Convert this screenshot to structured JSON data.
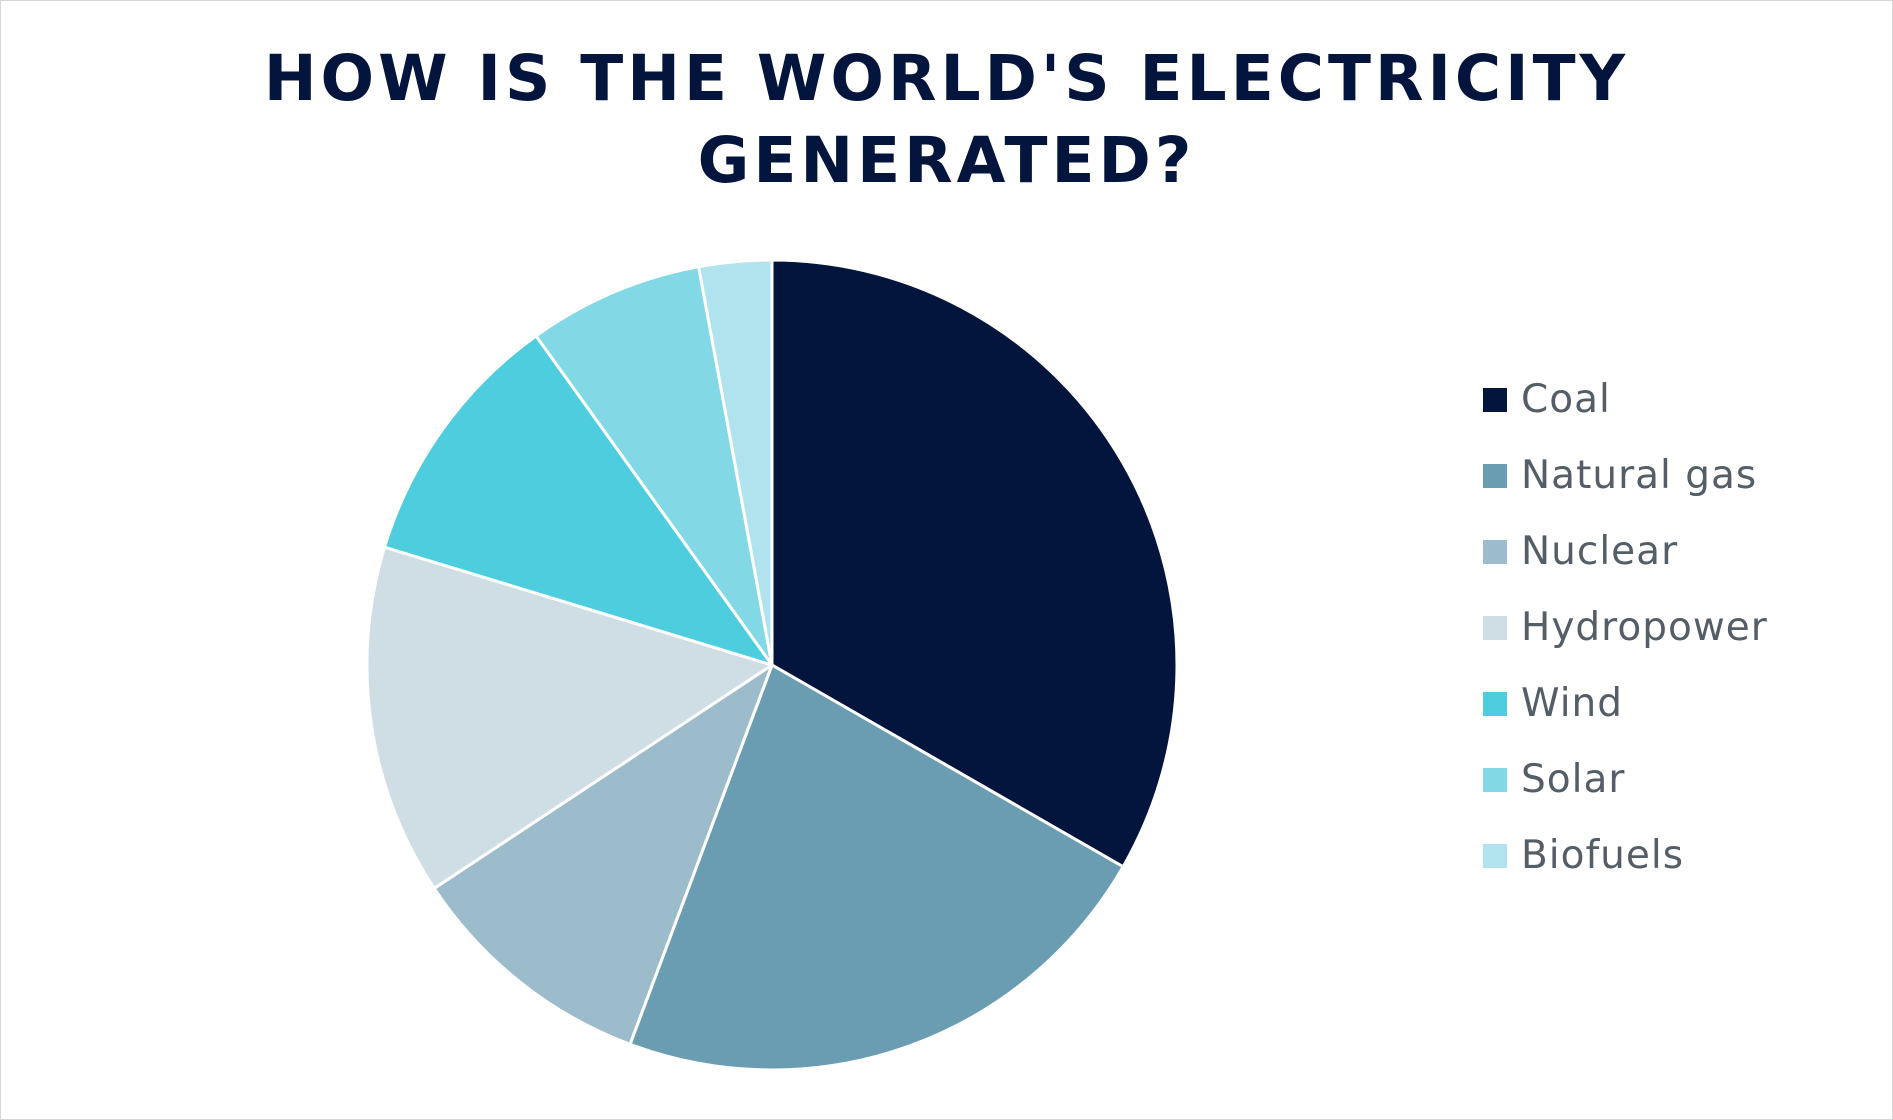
{
  "chart_data": {
    "type": "pie",
    "title_lines": [
      "HOW IS THE WORLD'S ELECTRICITY",
      "GENERATED?"
    ],
    "legend_position": "right",
    "categories": [
      "Coal",
      "Natural gas",
      "Nuclear",
      "Hydropower",
      "Wind",
      "Solar",
      "Biofuels"
    ],
    "values": [
      33.3,
      22.4,
      10.0,
      14.0,
      10.4,
      7.0,
      2.9
    ],
    "colors": [
      "#04153d",
      "#6a9db2",
      "#9dbccb",
      "#cfdde4",
      "#4ecddf",
      "#82d9e5",
      "#b0e3ee"
    ]
  }
}
